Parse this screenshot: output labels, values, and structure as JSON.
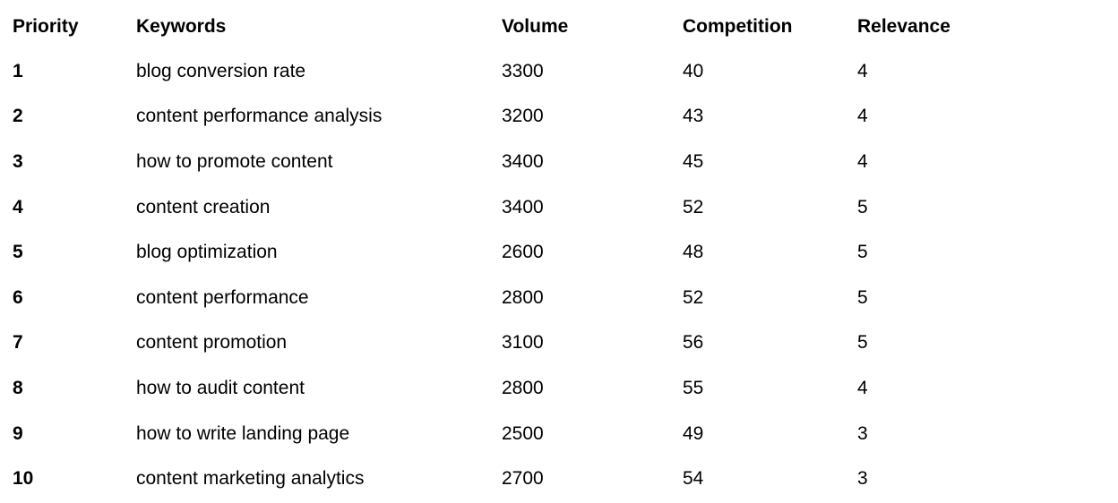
{
  "colors": {
    "background": "#ffffff",
    "text": "#000000"
  },
  "table": {
    "columns": [
      {
        "key": "priority",
        "label": "Priority"
      },
      {
        "key": "keywords",
        "label": "Keywords"
      },
      {
        "key": "volume",
        "label": "Volume"
      },
      {
        "key": "competition",
        "label": "Competition"
      },
      {
        "key": "relevance",
        "label": "Relevance"
      }
    ],
    "rows": [
      {
        "priority": "1",
        "keywords": "blog conversion rate",
        "volume": "3300",
        "competition": "40",
        "relevance": "4"
      },
      {
        "priority": "2",
        "keywords": "content performance analysis",
        "volume": "3200",
        "competition": "43",
        "relevance": "4"
      },
      {
        "priority": "3",
        "keywords": "how to promote content",
        "volume": "3400",
        "competition": "45",
        "relevance": "4"
      },
      {
        "priority": "4",
        "keywords": "content creation",
        "volume": "3400",
        "competition": "52",
        "relevance": "5"
      },
      {
        "priority": "5",
        "keywords": "blog optimization",
        "volume": "2600",
        "competition": "48",
        "relevance": "5"
      },
      {
        "priority": "6",
        "keywords": "content performance",
        "volume": "2800",
        "competition": "52",
        "relevance": "5"
      },
      {
        "priority": "7",
        "keywords": "content promotion",
        "volume": "3100",
        "competition": "56",
        "relevance": "5"
      },
      {
        "priority": "8",
        "keywords": "how to audit content",
        "volume": "2800",
        "competition": "55",
        "relevance": "4"
      },
      {
        "priority": "9",
        "keywords": "how to write landing page",
        "volume": "2500",
        "competition": "49",
        "relevance": "3"
      },
      {
        "priority": "10",
        "keywords": "content marketing analytics",
        "volume": "2700",
        "competition": "54",
        "relevance": "3"
      }
    ]
  }
}
